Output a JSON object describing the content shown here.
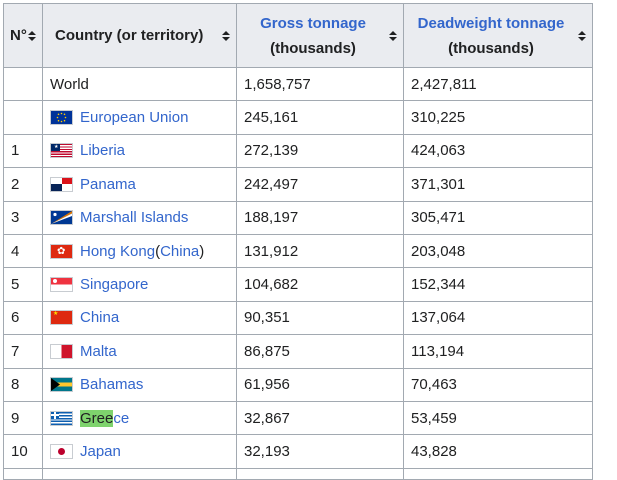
{
  "headers": {
    "rank": "N°",
    "country": "Country (or territory)",
    "gross_line1": "Gross tonnage",
    "gross_line2": "(thousands)",
    "dwt_line1": "Deadweight tonnage",
    "dwt_line2": "(thousands)"
  },
  "rows": [
    {
      "rank": "",
      "name": "World",
      "gross": "1,658,757",
      "dwt": "2,427,811",
      "flag": ""
    },
    {
      "rank": "",
      "name": "European Union",
      "gross": "245,161",
      "dwt": "310,225",
      "flag": "eu-flag"
    },
    {
      "rank": "1",
      "name": "Liberia",
      "gross": "272,139",
      "dwt": "424,063",
      "flag": "liberia-flag"
    },
    {
      "rank": "2",
      "name": "Panama",
      "gross": "242,497",
      "dwt": "371,301",
      "flag": "panama-flag"
    },
    {
      "rank": "3",
      "name": "Marshall Islands",
      "gross": "188,197",
      "dwt": "305,471",
      "flag": "marshall-islands-flag"
    },
    {
      "rank": "4",
      "name": "Hong Kong",
      "name_suffix_open": " (",
      "name_suffix_link": "China",
      "name_suffix_close": ")",
      "gross": "131,912",
      "dwt": "203,048",
      "flag": "hong-kong-flag"
    },
    {
      "rank": "5",
      "name": "Singapore",
      "gross": "104,682",
      "dwt": "152,344",
      "flag": "singapore-flag"
    },
    {
      "rank": "6",
      "name": "China",
      "gross": "90,351",
      "dwt": "137,064",
      "flag": "china-flag"
    },
    {
      "rank": "7",
      "name": "Malta",
      "gross": "86,875",
      "dwt": "113,194",
      "flag": "malta-flag"
    },
    {
      "rank": "8",
      "name": "Bahamas",
      "gross": "61,956",
      "dwt": "70,463",
      "flag": "bahamas-flag"
    },
    {
      "rank": "9",
      "name_highlight": "Gree",
      "name_rest": "ce",
      "gross": "32,867",
      "dwt": "53,459",
      "flag": "greece-flag"
    },
    {
      "rank": "10",
      "name": "Japan",
      "gross": "32,193",
      "dwt": "43,828",
      "flag": "japan-flag"
    }
  ],
  "colors": {
    "link": "#3366cc",
    "header_bg": "#eaecf0",
    "border": "#a2a9b1",
    "highlight": "#7ed36d"
  }
}
